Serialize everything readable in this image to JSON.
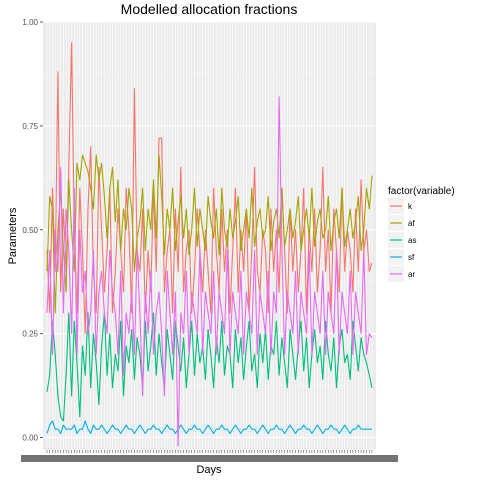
{
  "chart_data": {
    "type": "line",
    "title": "Modelled allocation fractions",
    "xlabel": "Days",
    "ylabel": "Parameters",
    "ylim": [
      -0.03,
      1.0
    ],
    "y_ticks": [
      0.0,
      0.25,
      0.5,
      0.75,
      1.0
    ],
    "y_tick_labels": [
      "0.00",
      "0.25",
      "0.50",
      "0.75",
      "1.00"
    ],
    "x_tick_labels": "unreadable overlapping date labels",
    "grid": true,
    "legend": {
      "title": "factor(variable)",
      "position": "right",
      "entries": [
        "k",
        "af",
        "as",
        "sf",
        "ar"
      ]
    },
    "colors": {
      "k": "#F8766D",
      "af": "#A3A500",
      "as": "#00BF7D",
      "sf": "#00B0F6",
      "ar": "#E76BF3"
    },
    "n_points": 120,
    "series": [
      {
        "name": "k",
        "values": [
          0.45,
          0.3,
          0.6,
          0.4,
          0.88,
          0.35,
          0.55,
          0.4,
          0.65,
          0.95,
          0.5,
          0.3,
          0.6,
          0.45,
          0.25,
          0.55,
          0.7,
          0.4,
          0.3,
          0.65,
          0.5,
          0.35,
          0.45,
          0.6,
          0.3,
          0.4,
          0.55,
          0.45,
          0.35,
          0.6,
          0.5,
          0.3,
          0.84,
          0.45,
          0.4,
          0.55,
          0.3,
          0.45,
          0.35,
          0.6,
          0.4,
          0.72,
          0.72,
          0.35,
          0.45,
          0.5,
          0.3,
          0.55,
          0.4,
          0.65,
          0.35,
          0.45,
          0.5,
          0.3,
          0.4,
          0.55,
          0.45,
          0.35,
          0.5,
          0.4,
          0.3,
          0.6,
          0.45,
          0.35,
          0.55,
          0.4,
          0.5,
          0.3,
          0.45,
          0.6,
          0.35,
          0.5,
          0.4,
          0.55,
          0.3,
          0.45,
          0.65,
          0.4,
          0.35,
          0.5,
          0.45,
          0.3,
          0.55,
          0.4,
          0.5,
          0.35,
          0.6,
          0.45,
          0.3,
          0.55,
          0.4,
          0.5,
          0.35,
          0.45,
          0.6,
          0.3,
          0.5,
          0.4,
          0.55,
          0.35,
          0.45,
          0.65,
          0.4,
          0.5,
          0.3,
          0.55,
          0.45,
          0.35,
          0.6,
          0.4,
          0.5,
          0.45,
          0.35,
          0.55,
          0.4,
          0.62,
          0.45,
          0.5,
          0.4,
          0.42
        ]
      },
      {
        "name": "af",
        "values": [
          0.4,
          0.58,
          0.55,
          0.3,
          0.5,
          0.6,
          0.45,
          0.35,
          0.62,
          0.5,
          0.4,
          0.66,
          0.62,
          0.68,
          0.66,
          0.64,
          0.6,
          0.55,
          0.68,
          0.62,
          0.66,
          0.58,
          0.48,
          0.6,
          0.65,
          0.52,
          0.62,
          0.45,
          0.55,
          0.5,
          0.6,
          0.55,
          0.4,
          0.48,
          0.52,
          0.6,
          0.45,
          0.55,
          0.5,
          0.62,
          0.48,
          0.68,
          0.58,
          0.44,
          0.55,
          0.5,
          0.6,
          0.45,
          0.52,
          0.58,
          0.48,
          0.55,
          0.44,
          0.5,
          0.6,
          0.46,
          0.55,
          0.5,
          0.45,
          0.58,
          0.52,
          0.48,
          0.55,
          0.44,
          0.6,
          0.5,
          0.46,
          0.55,
          0.48,
          0.52,
          0.58,
          0.45,
          0.5,
          0.55,
          0.48,
          0.6,
          0.46,
          0.52,
          0.55,
          0.48,
          0.5,
          0.58,
          0.45,
          0.52,
          0.55,
          0.48,
          0.6,
          0.46,
          0.5,
          0.55,
          0.48,
          0.52,
          0.58,
          0.45,
          0.5,
          0.55,
          0.48,
          0.6,
          0.46,
          0.52,
          0.55,
          0.48,
          0.5,
          0.58,
          0.45,
          0.52,
          0.55,
          0.48,
          0.6,
          0.46,
          0.5,
          0.55,
          0.48,
          0.52,
          0.58,
          0.45,
          0.5,
          0.6,
          0.55,
          0.63
        ]
      },
      {
        "name": "as",
        "values": [
          0.11,
          0.15,
          0.28,
          0.2,
          0.1,
          0.05,
          0.04,
          0.15,
          0.3,
          0.1,
          0.28,
          0.18,
          0.05,
          0.22,
          0.15,
          0.3,
          0.12,
          0.25,
          0.18,
          0.08,
          0.22,
          0.3,
          0.15,
          0.25,
          0.12,
          0.2,
          0.16,
          0.28,
          0.1,
          0.22,
          0.18,
          0.26,
          0.14,
          0.24,
          0.2,
          0.12,
          0.28,
          0.16,
          0.22,
          0.3,
          0.15,
          0.25,
          0.18,
          0.12,
          0.26,
          0.2,
          0.14,
          0.28,
          0.22,
          0.16,
          0.24,
          0.12,
          0.2,
          0.28,
          0.15,
          0.25,
          0.18,
          0.22,
          0.14,
          0.26,
          0.2,
          0.12,
          0.24,
          0.18,
          0.28,
          0.15,
          0.22,
          0.2,
          0.12,
          0.26,
          0.18,
          0.24,
          0.14,
          0.22,
          0.28,
          0.16,
          0.2,
          0.12,
          0.25,
          0.18,
          0.26,
          0.14,
          0.22,
          0.2,
          0.28,
          0.15,
          0.24,
          0.18,
          0.12,
          0.26,
          0.2,
          0.14,
          0.22,
          0.28,
          0.16,
          0.24,
          0.12,
          0.2,
          0.26,
          0.18,
          0.22,
          0.14,
          0.28,
          0.2,
          0.16,
          0.24,
          0.12,
          0.22,
          0.26,
          0.18,
          0.2,
          0.14,
          0.28,
          0.22,
          0.16,
          0.24,
          0.2,
          0.18,
          0.15,
          0.12
        ]
      },
      {
        "name": "sf",
        "values": [
          0.01,
          0.03,
          0.04,
          0.02,
          0.02,
          0.01,
          0.03,
          0.02,
          0.02,
          0.02,
          0.03,
          0.01,
          0.02,
          0.02,
          0.04,
          0.02,
          0.01,
          0.03,
          0.02,
          0.02,
          0.03,
          0.02,
          0.01,
          0.02,
          0.03,
          0.02,
          0.02,
          0.01,
          0.02,
          0.03,
          0.02,
          0.02,
          0.01,
          0.02,
          0.03,
          0.02,
          0.01,
          0.02,
          0.02,
          0.03,
          0.02,
          0.02,
          0.01,
          0.02,
          0.03,
          0.02,
          0.02,
          0.01,
          0.02,
          0.03,
          0.02,
          0.01,
          0.02,
          0.02,
          0.03,
          0.02,
          0.02,
          0.01,
          0.02,
          0.03,
          0.02,
          0.01,
          0.02,
          0.02,
          0.03,
          0.02,
          0.02,
          0.01,
          0.02,
          0.03,
          0.02,
          0.01,
          0.02,
          0.02,
          0.03,
          0.02,
          0.02,
          0.01,
          0.02,
          0.03,
          0.02,
          0.01,
          0.02,
          0.02,
          0.03,
          0.02,
          0.02,
          0.01,
          0.02,
          0.03,
          0.02,
          0.01,
          0.02,
          0.02,
          0.03,
          0.02,
          0.02,
          0.01,
          0.02,
          0.03,
          0.02,
          0.01,
          0.02,
          0.02,
          0.03,
          0.02,
          0.02,
          0.01,
          0.02,
          0.03,
          0.02,
          0.01,
          0.02,
          0.02,
          0.03,
          0.02,
          0.02,
          0.02,
          0.02,
          0.02
        ]
      },
      {
        "name": "ar",
        "values": [
          0.3,
          0.45,
          0.2,
          0.5,
          0.4,
          0.65,
          0.3,
          0.55,
          0.45,
          0.25,
          0.6,
          0.2,
          0.5,
          0.35,
          0.4,
          0.25,
          0.3,
          0.45,
          0.2,
          0.35,
          0.4,
          0.3,
          0.25,
          0.45,
          0.35,
          0.3,
          0.2,
          0.4,
          0.15,
          0.3,
          0.25,
          0.35,
          0.2,
          0.45,
          0.3,
          0.1,
          0.35,
          0.25,
          0.4,
          0.2,
          0.3,
          0.35,
          0.25,
          0.1,
          0.4,
          0.3,
          0.2,
          0.35,
          -0.02,
          0.3,
          0.25,
          0.4,
          0.2,
          0.35,
          0.3,
          0.25,
          0.45,
          0.2,
          0.35,
          0.3,
          0.25,
          0.4,
          0.2,
          0.35,
          0.3,
          0.25,
          0.45,
          0.2,
          0.35,
          0.3,
          0.25,
          0.4,
          0.2,
          0.35,
          0.3,
          0.25,
          0.45,
          0.2,
          0.35,
          0.3,
          0.25,
          0.4,
          0.2,
          0.35,
          0.3,
          0.82,
          0.45,
          0.2,
          0.35,
          0.3,
          0.25,
          0.4,
          0.2,
          0.35,
          0.3,
          0.25,
          0.45,
          0.2,
          0.35,
          0.3,
          0.25,
          0.4,
          0.2,
          0.35,
          0.3,
          0.25,
          0.45,
          0.2,
          0.35,
          0.3,
          0.25,
          0.4,
          0.2,
          0.35,
          0.3,
          0.25,
          0.45,
          0.2,
          0.25,
          0.24
        ]
      }
    ]
  }
}
